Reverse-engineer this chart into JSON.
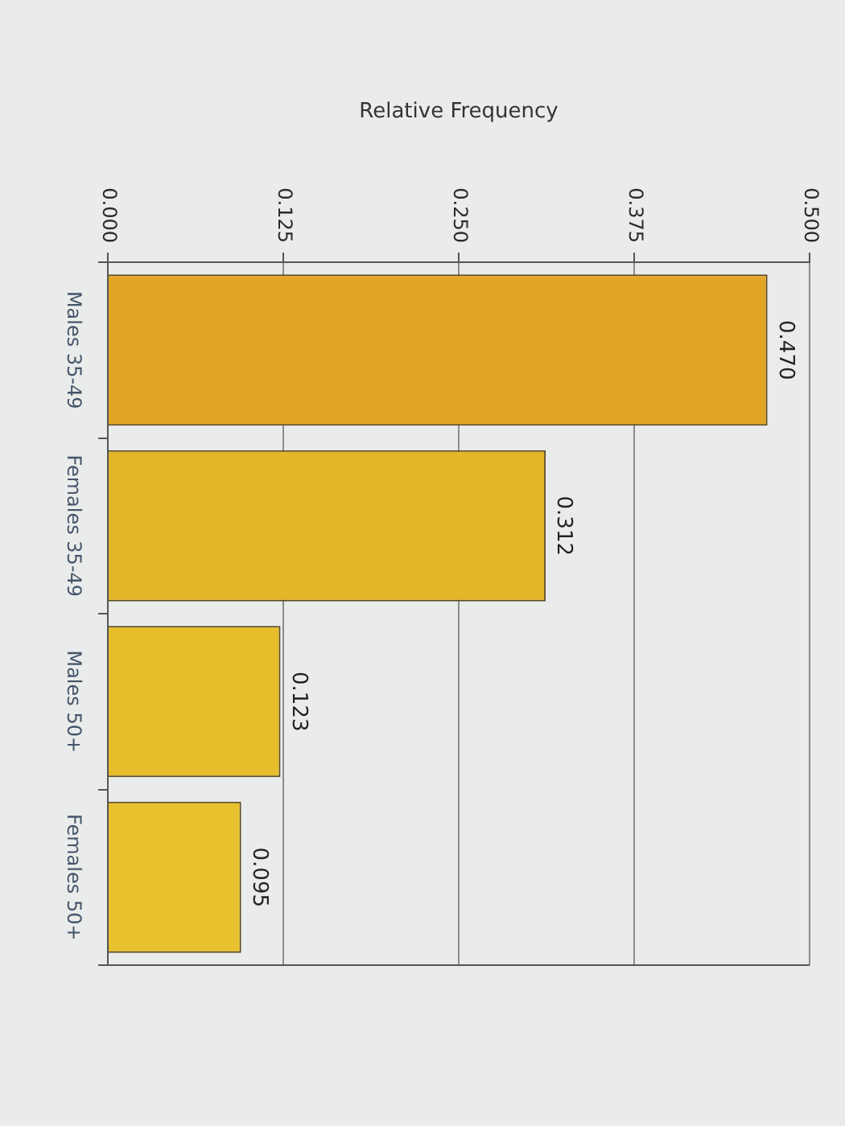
{
  "chart_data": {
    "type": "bar",
    "orientation": "horizontal",
    "xlabel": "Relative Frequency",
    "categories": [
      "Males 35-49",
      "Females 35-49",
      "Males 50+",
      "Females 50+"
    ],
    "values": [
      0.47,
      0.312,
      0.123,
      0.095
    ],
    "colors": [
      "#e2a624",
      "#e4b62a",
      "#e6be2c",
      "#e8c22e"
    ],
    "value_labels": [
      "0.470",
      "0.312",
      "0.123",
      "0.095"
    ],
    "xlim": [
      0,
      0.5
    ],
    "xticks": [
      {
        "value": 0,
        "label": "0.000"
      },
      0.125,
      {
        "value": 0.25,
        "label": "0.250"
      },
      0.375,
      {
        "value": 0.5,
        "label": "0.500"
      }
    ],
    "grid": "x",
    "legend": false
  }
}
